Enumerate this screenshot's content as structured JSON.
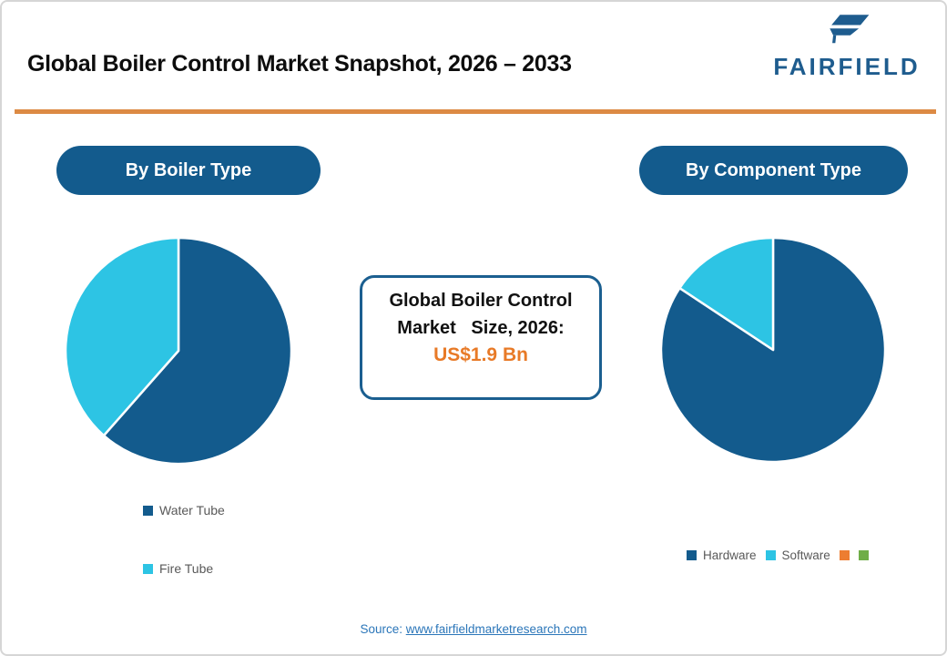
{
  "header": {
    "title": "Global Boiler Control Market Snapshot, 2026 – 2033",
    "logo_text": "FAIRFIELD"
  },
  "sections": {
    "left_pill": "By Boiler Type",
    "right_pill": "By Component Type"
  },
  "center_box": {
    "line1": "Global Boiler Control",
    "line2": "Market   Size, 2026:",
    "value": "US$1.9 Bn"
  },
  "source": {
    "prefix": "Source: ",
    "link": "www.fairfieldmarketresearch.com"
  },
  "colors": {
    "dark_blue": "#135b8d",
    "light_blue": "#2dc4e4",
    "orange": "#ed7d31",
    "green": "#6fad47",
    "divider_orange": "#dc8a44",
    "value_orange": "#e87a27",
    "logo_blue": "#1e5c8e",
    "link_blue": "#2b76b9",
    "legend_text_gray": "#595959"
  },
  "chart_data": [
    {
      "type": "pie",
      "title": "By Boiler Type",
      "labels": [
        "Water Tube",
        "Fire Tube"
      ],
      "values": [
        61.5,
        38.5
      ],
      "colors": [
        "#135b8d",
        "#2dc4e4"
      ],
      "start_angle_deg": 0,
      "direction": "clockwise",
      "radius_px": 124,
      "separator_color": "#ffffff",
      "legend_position": "below-left-vertical"
    },
    {
      "type": "pie",
      "title": "By Component Type",
      "labels": [
        "Hardware",
        "Software",
        "",
        ""
      ],
      "values": [
        84.3,
        15.7,
        0,
        0
      ],
      "colors": [
        "#135b8d",
        "#2dc4e4",
        "#ed7d31",
        "#6fad47"
      ],
      "start_angle_deg": 0,
      "direction": "clockwise",
      "radius_px": 123,
      "separator_color": "#ffffff",
      "legend_position": "below-horizontal"
    }
  ]
}
